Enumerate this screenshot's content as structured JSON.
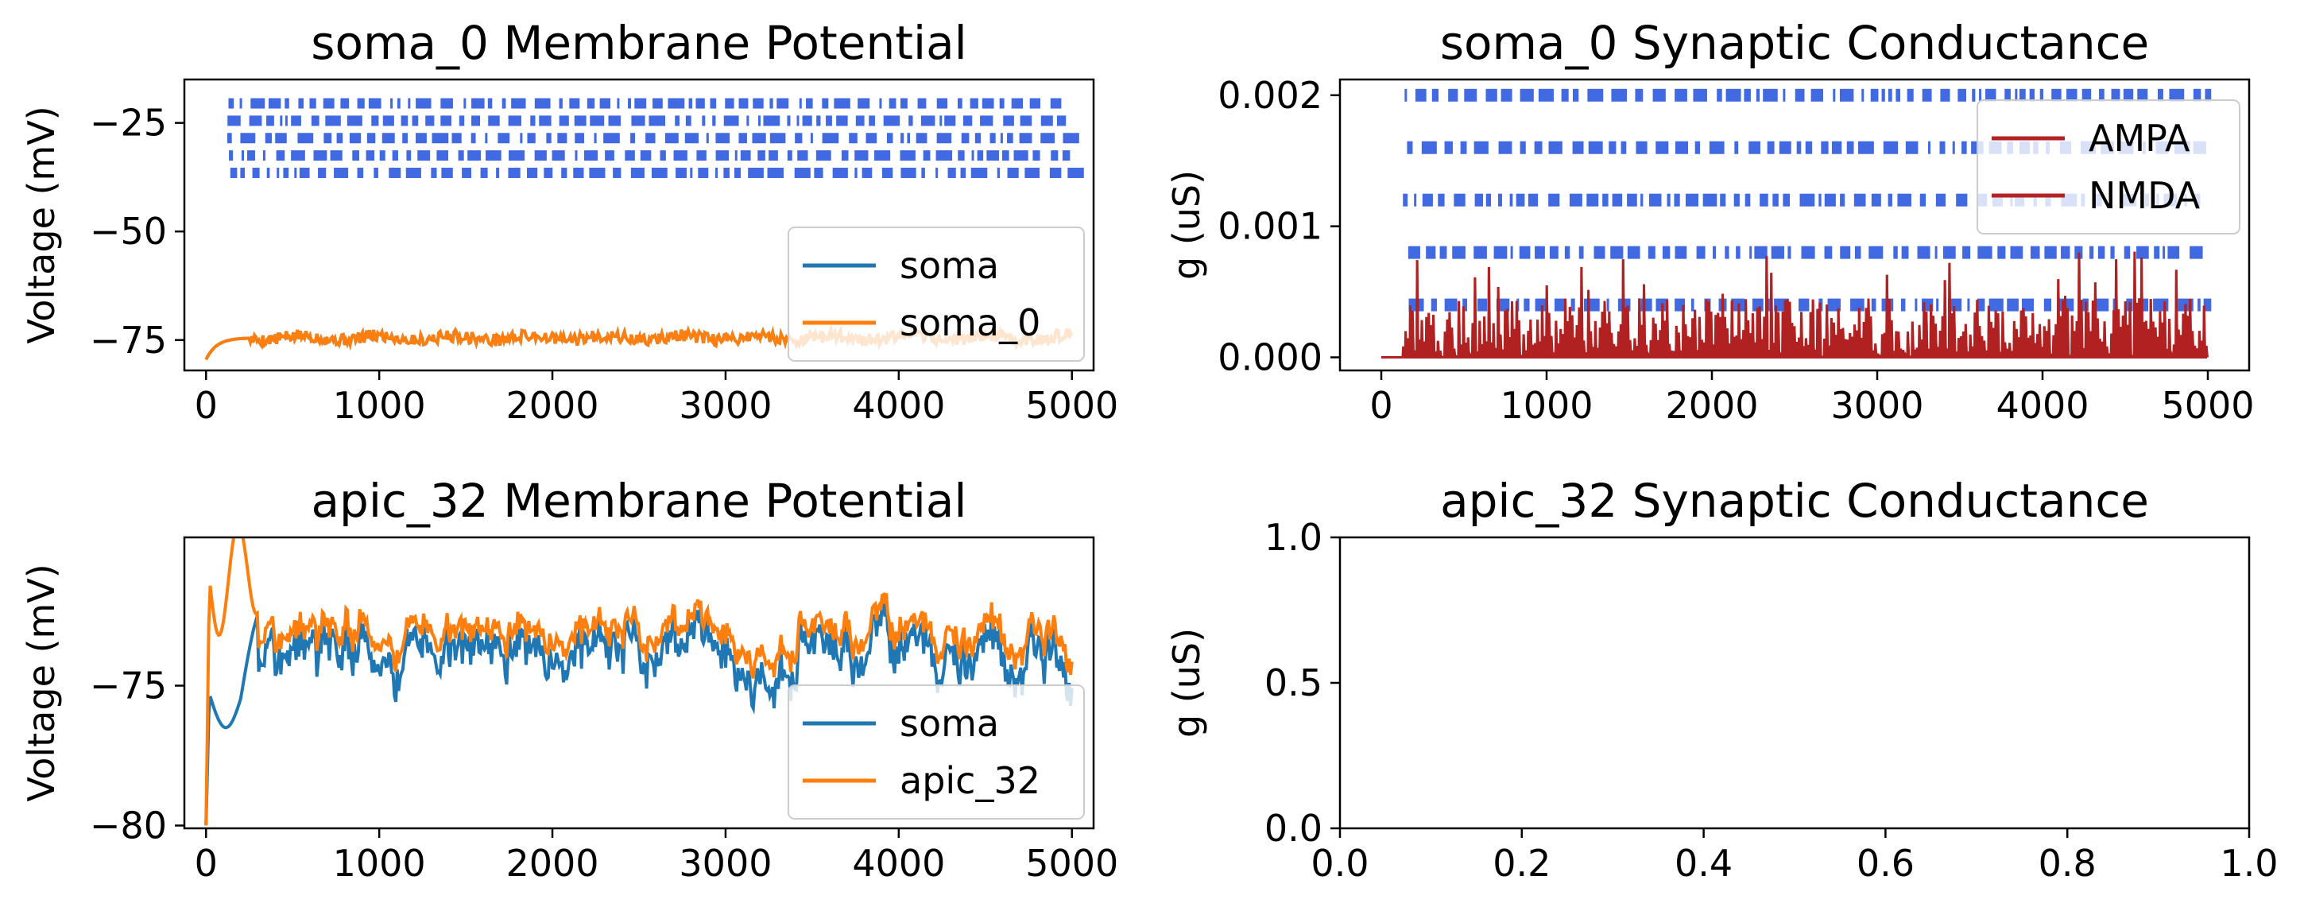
{
  "chart_data": [
    {
      "type": "line",
      "title": "soma_0 Membrane Potential",
      "xlabel": "",
      "ylabel": "Voltage (mV)",
      "xlim": [
        -125,
        5125
      ],
      "ylim": [
        -82,
        -15
      ],
      "xticks": [
        0,
        1000,
        2000,
        3000,
        4000,
        5000
      ],
      "yticks": [
        -75,
        -50,
        -25
      ],
      "x_ticklabels": [
        "0",
        "1000",
        "2000",
        "3000",
        "4000",
        "5000"
      ],
      "y_ticklabels": [
        "−75",
        "−50",
        "−25"
      ],
      "legend_position": "lower-right",
      "series": [
        {
          "name": "soma",
          "color": "#1f77b4",
          "values_desc": "hidden behind soma_0 trace",
          "start": -79.5,
          "baseline": -74.5
        },
        {
          "name": "soma_0",
          "color": "#ff7f0e",
          "start": -79.5,
          "baseline": -74.5,
          "noise": 1.4
        }
      ],
      "raster": {
        "color": "#4169e1",
        "rows_y": [
          -20.5,
          -24.5,
          -28.5,
          -32.5,
          -36.5
        ],
        "x_range": [
          120,
          4980
        ]
      }
    },
    {
      "type": "line",
      "title": "soma_0 Synaptic Conductance",
      "xlabel": "",
      "ylabel": "g (uS)",
      "xlim": [
        -250,
        5250
      ],
      "ylim": [
        -0.0001,
        0.00212
      ],
      "xticks": [
        0,
        1000,
        2000,
        3000,
        4000,
        5000
      ],
      "yticks": [
        0.0,
        0.001,
        0.002
      ],
      "x_ticklabels": [
        "0",
        "1000",
        "2000",
        "3000",
        "4000",
        "5000"
      ],
      "y_ticklabels": [
        "0.000",
        "0.001",
        "0.002"
      ],
      "legend_position": "upper-right",
      "series": [
        {
          "name": "AMPA",
          "color": "#b22222"
        },
        {
          "name": "NMDA",
          "color": "#b22222"
        }
      ],
      "raster": {
        "color": "#4169e1",
        "rows_y": [
          0.002,
          0.0016,
          0.0012,
          0.0008,
          0.0004
        ],
        "x_range": [
          130,
          5000
        ]
      }
    },
    {
      "type": "line",
      "title": "apic_32 Membrane Potential",
      "xlabel": "",
      "ylabel": "Voltage (mV)",
      "xlim": [
        -125,
        5125
      ],
      "ylim": [
        -80.1,
        -69.7
      ],
      "xticks": [
        0,
        1000,
        2000,
        3000,
        4000,
        5000
      ],
      "yticks": [
        -80,
        -75
      ],
      "x_ticklabels": [
        "0",
        "1000",
        "2000",
        "3000",
        "4000",
        "5000"
      ],
      "y_ticklabels": [
        "−80",
        "−75"
      ],
      "legend_position": "lower-right",
      "series": [
        {
          "name": "soma",
          "color": "#1f77b4",
          "start": -80.0,
          "baseline": -74.0
        },
        {
          "name": "apic_32",
          "color": "#ff7f0e",
          "start": -80.0,
          "baseline": -73.3
        }
      ]
    },
    {
      "type": "line",
      "title": "apic_32 Synaptic Conductance",
      "xlabel": "",
      "ylabel": "g (uS)",
      "xlim": [
        0.0,
        1.0
      ],
      "ylim": [
        0.0,
        1.0
      ],
      "xticks": [
        0.0,
        0.2,
        0.4,
        0.6,
        0.8,
        1.0
      ],
      "yticks": [
        0.0,
        0.5,
        1.0
      ],
      "x_ticklabels": [
        "0.0",
        "0.2",
        "0.4",
        "0.6",
        "0.8",
        "1.0"
      ],
      "y_ticklabels": [
        "0.0",
        "0.5",
        "1.0"
      ],
      "series": []
    }
  ]
}
